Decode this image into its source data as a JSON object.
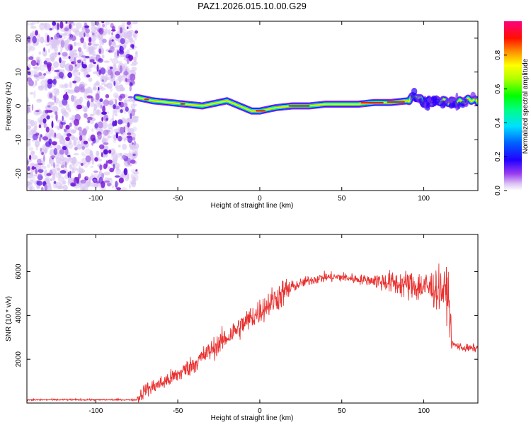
{
  "title": "PAZ1.2026.015.10.00.G29",
  "colors": {
    "snr_line": "#e8312f",
    "cloud_purple": "#7f1fd8",
    "cloud_light": "#d9c6f2"
  },
  "chart_data": [
    {
      "type": "heatmap",
      "name": "spectrogram",
      "title": "PAZ1.2026.015.10.00.G29",
      "xlabel": "Height of straight line (km)",
      "ylabel": "Frequency (Hz)",
      "xlim": [
        -142,
        133
      ],
      "ylim": [
        -25,
        25
      ],
      "xticks": [
        -100,
        -50,
        0,
        50,
        100
      ],
      "yticks": [
        -20,
        -10,
        0,
        10,
        20
      ],
      "noise_region_x": [
        -142,
        -75
      ],
      "ridge": {
        "x": [
          -75,
          -65,
          -55,
          -45,
          -35,
          -25,
          -20,
          -10,
          -5,
          0,
          10,
          20,
          30,
          40,
          50,
          60,
          70,
          80,
          90,
          95,
          100,
          110,
          120,
          130,
          133
        ],
        "freq": [
          2.5,
          1.5,
          1.0,
          0.5,
          0.0,
          1.0,
          1.5,
          -0.5,
          -1.5,
          -1.5,
          -0.5,
          0.0,
          0.0,
          0.5,
          0.5,
          0.5,
          1.0,
          1.0,
          1.5,
          3.0,
          1.0,
          1.5,
          1.0,
          2.0,
          1.0
        ]
      },
      "colorbar": {
        "label": "Normalized spectral amplitude",
        "range": [
          0.0,
          1.0
        ],
        "ticks": [
          0.0,
          0.2,
          0.4,
          0.6,
          0.8
        ]
      }
    },
    {
      "type": "line",
      "name": "snr",
      "xlabel": "Height of straight line (km)",
      "ylabel": "SNR (10 * v/v)",
      "xlim": [
        -142,
        133
      ],
      "ylim": [
        0,
        7700
      ],
      "xticks": [
        -100,
        -50,
        0,
        50,
        100
      ],
      "yticks": [
        2000,
        4000,
        6000
      ],
      "trend": {
        "x": [
          -142,
          -75,
          -70,
          -60,
          -50,
          -40,
          -30,
          -20,
          -10,
          0,
          10,
          20,
          30,
          40,
          50,
          60,
          70,
          80,
          90,
          100,
          110,
          115,
          117,
          125,
          133
        ],
        "y": [
          150,
          150,
          600,
          900,
          1300,
          1800,
          2400,
          3000,
          3600,
          4200,
          4800,
          5300,
          5600,
          5750,
          5750,
          5650,
          5600,
          5500,
          5400,
          5300,
          5200,
          5000,
          2700,
          2500,
          2500
        ]
      }
    }
  ]
}
